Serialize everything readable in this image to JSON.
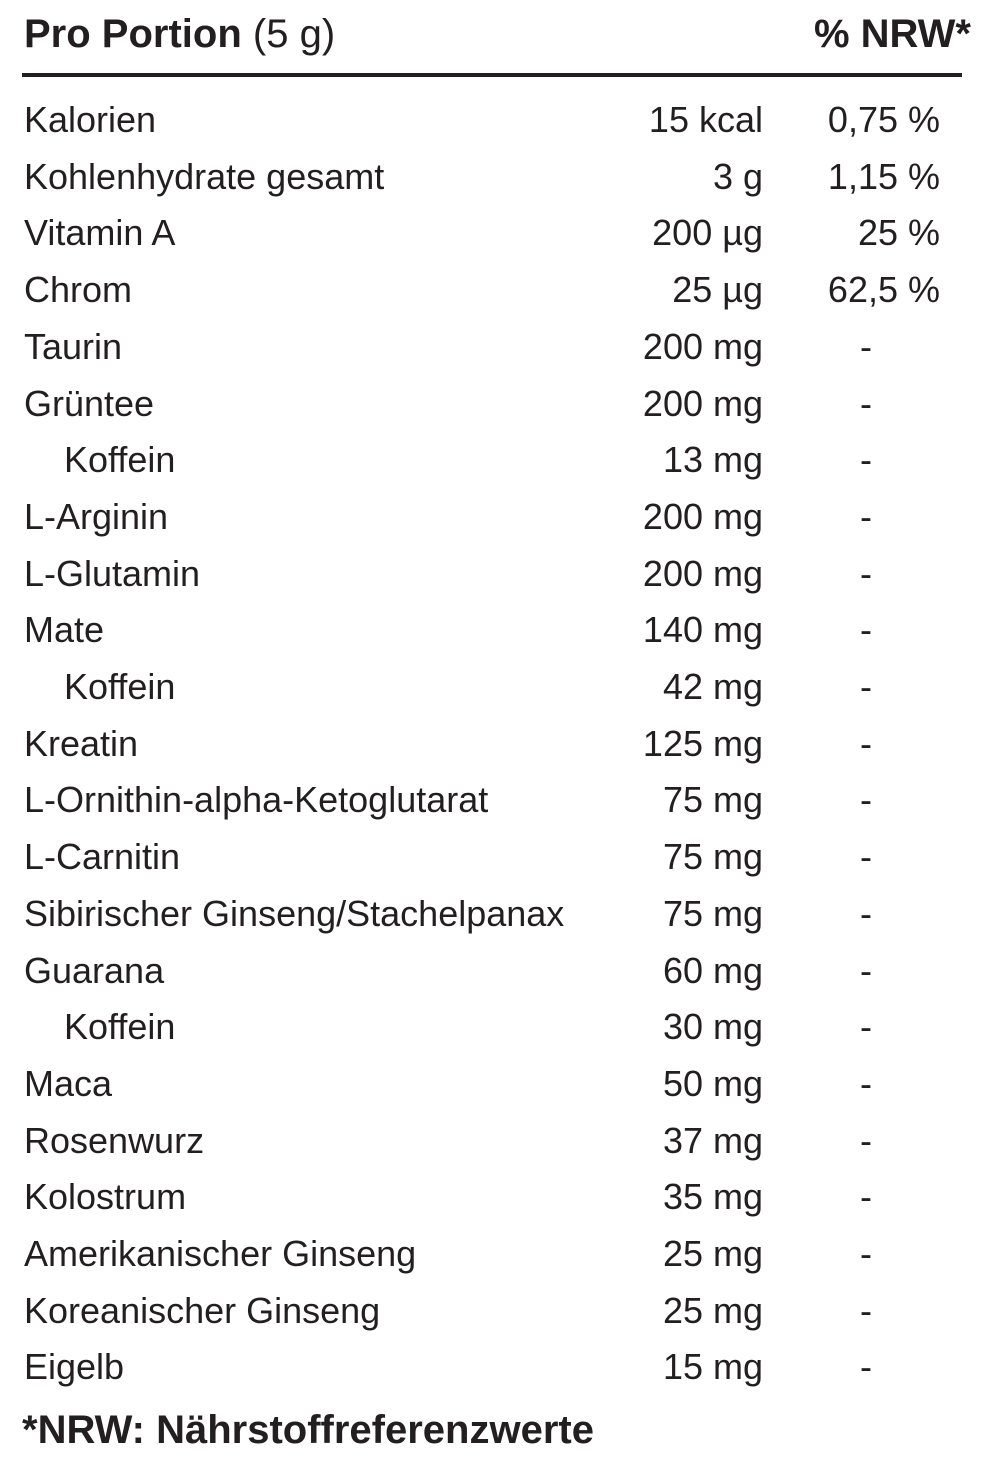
{
  "header": {
    "title": "Pro Portion",
    "serving": "(5 g)",
    "nrw": "% NRW*"
  },
  "table": {
    "rows": [
      {
        "name": "Kalorien",
        "amount": "15 kcal",
        "nrw": "0,75 %"
      },
      {
        "name": "Kohlenhydrate gesamt",
        "amount": "3 g",
        "nrw": "1,15 %"
      },
      {
        "name": "Vitamin A",
        "amount": "200 µg",
        "nrw": "25 %"
      },
      {
        "name": "Chrom",
        "amount": "25 µg",
        "nrw": "62,5 %"
      },
      {
        "name": "Taurin",
        "amount": "200 mg",
        "nrw": "-"
      },
      {
        "name": "Grüntee",
        "amount": "200 mg",
        "nrw": "-",
        "children": [
          {
            "name": "Koffein",
            "amount": "13 mg",
            "nrw": "-"
          }
        ]
      },
      {
        "name": "L-Arginin",
        "amount": "200 mg",
        "nrw": "-"
      },
      {
        "name": "L-Glutamin",
        "amount": "200 mg",
        "nrw": "-"
      },
      {
        "name": "Mate",
        "amount": "140 mg",
        "nrw": "-",
        "children": [
          {
            "name": "Koffein",
            "amount": "42 mg",
            "nrw": "-"
          }
        ]
      },
      {
        "name": "Kreatin",
        "amount": "125 mg",
        "nrw": "-"
      },
      {
        "name": "L-Ornithin-alpha-Ketoglutarat",
        "amount": "75 mg",
        "nrw": "-"
      },
      {
        "name": "L-Carnitin",
        "amount": "75 mg",
        "nrw": "-"
      },
      {
        "name": "Sibirischer Ginseng/Stachelpanax",
        "amount": "75 mg",
        "nrw": "-"
      },
      {
        "name": "Guarana",
        "amount": "60 mg",
        "nrw": "-",
        "children": [
          {
            "name": "Koffein",
            "amount": "30 mg",
            "nrw": "-"
          }
        ]
      },
      {
        "name": "Maca",
        "amount": "50 mg",
        "nrw": "-"
      },
      {
        "name": "Rosenwurz",
        "amount": "37 mg",
        "nrw": "-"
      },
      {
        "name": "Kolostrum",
        "amount": "35 mg",
        "nrw": "-"
      },
      {
        "name": "Amerikanischer Ginseng",
        "amount": "25 mg",
        "nrw": "-"
      },
      {
        "name": "Koreanischer Ginseng",
        "amount": "25 mg",
        "nrw": "-"
      },
      {
        "name": "Eigelb",
        "amount": "15 mg",
        "nrw": "-"
      }
    ]
  },
  "footer": "*NRW: Nährstoffreferenzwerte"
}
